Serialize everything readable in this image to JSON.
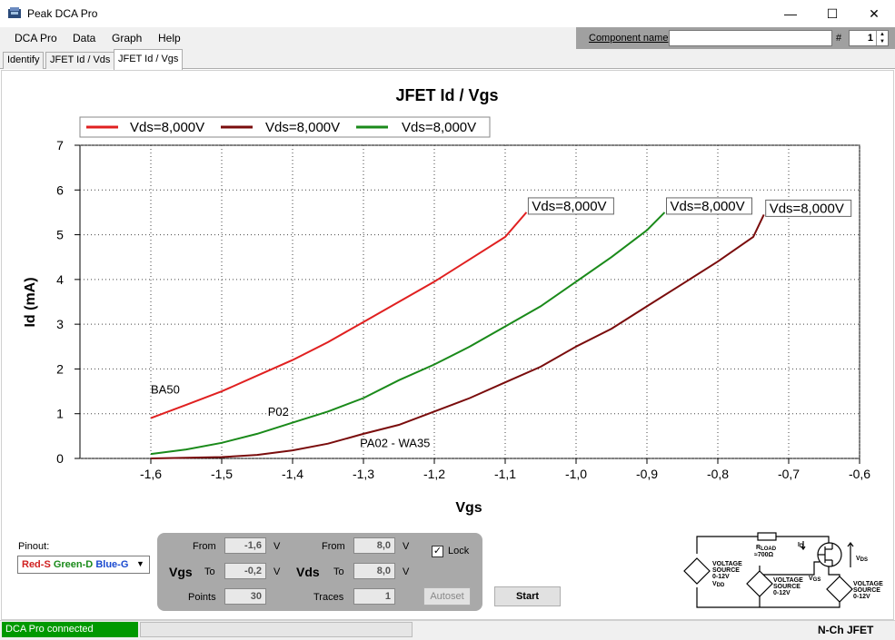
{
  "window": {
    "title": "Peak DCA Pro",
    "minimize_glyph": "—",
    "maximize_glyph": "☐",
    "close_glyph": "✕",
    "icon": "dca-pro-app-icon"
  },
  "menu": {
    "items": [
      {
        "label": "DCA Pro"
      },
      {
        "label": "Data"
      },
      {
        "label": "Graph"
      },
      {
        "label": "Help"
      }
    ]
  },
  "component": {
    "name_label": "Component name",
    "name_value": "",
    "number_label": "#",
    "number_value": "1"
  },
  "tabs": [
    {
      "label": "Identify",
      "active": false
    },
    {
      "label": "JFET Id / Vds",
      "active": false
    },
    {
      "label": "JFET Id / Vgs",
      "active": true
    }
  ],
  "chart_data": {
    "type": "line",
    "title": "JFET Id / Vgs",
    "xlabel": "Vgs",
    "ylabel": "Id (mA)",
    "xlim": [
      -1.7,
      -0.6
    ],
    "ylim": [
      0,
      7
    ],
    "x_ticks": [
      -1.6,
      -1.5,
      -1.4,
      -1.3,
      -1.2,
      -1.1,
      -1.0,
      -0.9,
      -0.8,
      -0.7,
      -0.6
    ],
    "x_tick_labels": [
      "-1,6",
      "-1,5",
      "-1,4",
      "-1,3",
      "-1,2",
      "-1,1",
      "-1,0",
      "-0,9",
      "-0,8",
      "-0,7",
      "-0,6"
    ],
    "y_ticks": [
      0,
      1,
      2,
      3,
      4,
      5,
      6,
      7
    ],
    "y_tick_labels": [
      "0",
      "1",
      "2",
      "3",
      "4",
      "5",
      "6",
      "7"
    ],
    "grid": true,
    "legend_position": "top-left",
    "series": [
      {
        "name": "Vds=8,000V",
        "color": "#e02020",
        "end_label": "Vds=8,000V",
        "x": [
          -1.6,
          -1.55,
          -1.5,
          -1.45,
          -1.4,
          -1.35,
          -1.3,
          -1.25,
          -1.2,
          -1.15,
          -1.1,
          -1.07
        ],
        "y": [
          0.9,
          1.2,
          1.5,
          1.85,
          2.2,
          2.6,
          3.05,
          3.5,
          3.95,
          4.45,
          4.95,
          5.5
        ]
      },
      {
        "name": "Vds=8,000V",
        "color": "#7a0c0c",
        "end_label": "Vds=8,000V",
        "x": [
          -1.6,
          -1.5,
          -1.45,
          -1.4,
          -1.35,
          -1.3,
          -1.25,
          -1.2,
          -1.15,
          -1.1,
          -1.05,
          -1.0,
          -0.95,
          -0.9,
          -0.85,
          -0.8,
          -0.75,
          -0.735
        ],
        "y": [
          0.0,
          0.03,
          0.08,
          0.18,
          0.33,
          0.55,
          0.75,
          1.05,
          1.35,
          1.7,
          2.05,
          2.5,
          2.9,
          3.4,
          3.9,
          4.4,
          4.95,
          5.45
        ]
      },
      {
        "name": "Vds=8,000V",
        "color": "#1a8a1a",
        "end_label": "Vds=8,000V",
        "x": [
          -1.6,
          -1.55,
          -1.5,
          -1.45,
          -1.4,
          -1.35,
          -1.3,
          -1.25,
          -1.2,
          -1.15,
          -1.1,
          -1.05,
          -1.0,
          -0.95,
          -0.9,
          -0.875
        ],
        "y": [
          0.1,
          0.2,
          0.35,
          0.55,
          0.8,
          1.05,
          1.35,
          1.75,
          2.1,
          2.5,
          2.95,
          3.4,
          3.95,
          4.5,
          5.1,
          5.5
        ]
      }
    ],
    "annotations": [
      {
        "text": "BA50",
        "x": -1.6,
        "y": 1.45
      },
      {
        "text": "P02",
        "x": -1.435,
        "y": 0.95
      },
      {
        "text": "PA02 - WA35",
        "x": -1.305,
        "y": 0.25
      }
    ]
  },
  "pinout": {
    "label": "Pinout:",
    "red": "Red-S",
    "green": "Green-D",
    "blue": "Blue-G",
    "red_color": "#d02020",
    "green_color": "#1a8a1a",
    "blue_color": "#1a4ad0"
  },
  "sweep": {
    "vgs": {
      "label": "Vgs",
      "from_label": "From",
      "from_value": "-1,6",
      "to_label": "To",
      "to_value": "-0,2",
      "unit": "V",
      "points_label": "Points",
      "points_value": "30"
    },
    "vds": {
      "label": "Vds",
      "from_label": "From",
      "from_value": "8,0",
      "to_label": "To",
      "to_value": "8,0",
      "unit": "V",
      "traces_label": "Traces",
      "traces_value": "1"
    },
    "lock_label": "Lock",
    "lock_checked": true,
    "autoset_label": "Autoset"
  },
  "start_label": "Start",
  "schematic": {
    "rload": "R",
    "rload_sub": "LOAD",
    "rload_value": "≈700Ω",
    "id_label": "I",
    "id_sub": "D",
    "vds_label": "V",
    "vds_sub": "DS",
    "vgs_label": "V",
    "vgs_sub": "GS",
    "src_vdd_l1": "VOLTAGE",
    "src_vdd_l2": "SOURCE",
    "src_vdd_l3": "0-12V",
    "src_vdd_l4": "V",
    "src_vdd_sub": "DD",
    "src_mid_l1": "VOLTAGE",
    "src_mid_l2": "SOURCE",
    "src_mid_l3": "0-12V",
    "src_right_l1": "VOLTAGE",
    "src_right_l2": "SOURCE",
    "src_right_l3": "0-12V"
  },
  "status": {
    "connection": "DCA Pro connected",
    "device_type": "N-Ch JFET",
    "connection_color": "#009900"
  }
}
